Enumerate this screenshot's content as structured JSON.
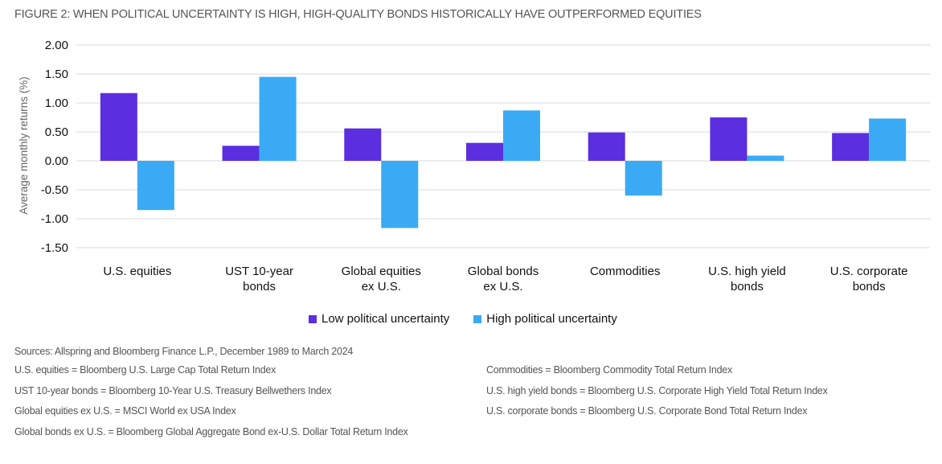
{
  "title": "FIGURE 2: WHEN POLITICAL UNCERTAINTY IS HIGH, HIGH-QUALITY BONDS HISTORICALLY HAVE OUTPERFORMED EQUITIES",
  "chart_data": {
    "type": "bar",
    "title": "FIGURE 2: WHEN POLITICAL UNCERTAINTY IS HIGH, HIGH-QUALITY BONDS HISTORICALLY HAVE OUTPERFORMED EQUITIES",
    "xlabel": "",
    "ylabel": "Average monthly returns (%)",
    "ylim": [
      -1.5,
      2.0
    ],
    "yticks": [
      "2.00",
      "1.50",
      "1.00",
      "0.50",
      "0.00",
      "-0.50",
      "-1.00",
      "-1.50"
    ],
    "grid": true,
    "legend_position": "bottom",
    "categories": [
      [
        "U.S. equities"
      ],
      [
        "UST 10-year",
        "bonds"
      ],
      [
        "Global equities",
        "ex U.S."
      ],
      [
        "Global bonds",
        "ex U.S."
      ],
      [
        "Commodities"
      ],
      [
        "U.S. high yield",
        "bonds"
      ],
      [
        "U.S. corporate",
        "bonds"
      ]
    ],
    "series": [
      {
        "name": "Low political uncertainty",
        "color": "#5b2ee0",
        "values": [
          1.17,
          0.26,
          0.56,
          0.31,
          0.49,
          0.75,
          0.48
        ]
      },
      {
        "name": "High political uncertainty",
        "color": "#3aaaf5",
        "values": [
          -0.85,
          1.45,
          -1.16,
          0.87,
          -0.6,
          0.09,
          0.73
        ]
      }
    ]
  },
  "legend": {
    "items": [
      {
        "label": "Low political uncertainty",
        "color": "#5b2ee0"
      },
      {
        "label": "High political uncertainty",
        "color": "#3aaaf5"
      }
    ]
  },
  "notes": {
    "sources": "Sources: Allspring and Bloomberg Finance L.P., December 1989 to March 2024",
    "left": [
      "U.S. equities = Bloomberg U.S. Large Cap Total Return Index",
      "UST 10-year bonds = Bloomberg 10-Year U.S. Treasury Bellwethers Index",
      "Global equities ex U.S. = MSCI World ex USA Index",
      "Global bonds ex U.S. = Bloomberg Global Aggregate Bond ex-U.S. Dollar Total Return Index"
    ],
    "right": [
      "Commodities = Bloomberg Commodity Total Return Index",
      "U.S. high yield bonds = Bloomberg U.S. Corporate High Yield Total Return Index",
      "U.S. corporate bonds = Bloomberg U.S. Corporate Bond Total Return Index"
    ]
  }
}
